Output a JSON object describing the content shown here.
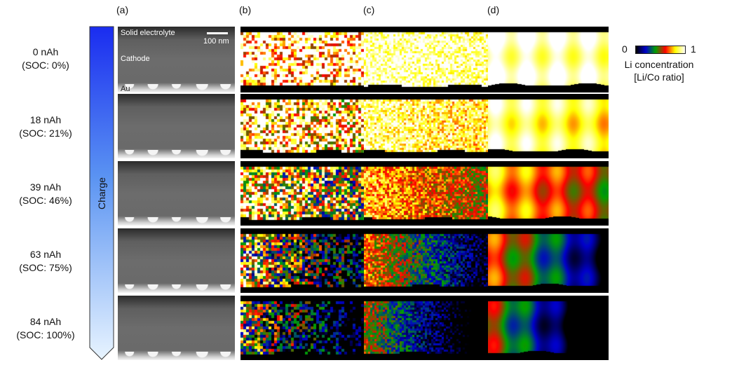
{
  "panels": {
    "a": "(a)",
    "b": "(b)",
    "c": "(c)",
    "d": "(d)"
  },
  "arrow": {
    "label": "Charge"
  },
  "rows": [
    {
      "charge": "0 nAh",
      "soc": "(SOC: 0%)",
      "level": 0.95
    },
    {
      "charge": "18 nAh",
      "soc": "(SOC: 21%)",
      "level": 0.86
    },
    {
      "charge": "39 nAh",
      "soc": "(SOC: 46%)",
      "level": 0.62
    },
    {
      "charge": "63 nAh",
      "soc": "(SOC: 75%)",
      "level": 0.42
    },
    {
      "charge": "84 nAh",
      "soc": "(SOC: 100%)",
      "level": 0.22
    }
  ],
  "em_labels": {
    "solid_electrolyte": "Solid electrolyte",
    "scale_bar": "100 nm",
    "cathode": "Cathode",
    "au": "Au"
  },
  "colorbar": {
    "min": "0",
    "max": "1",
    "title": "Li concentration",
    "subtitle": "[Li/Co ratio]",
    "colors": [
      "#000000",
      "#0000cc",
      "#00a000",
      "#ff0000",
      "#ffff00",
      "#ffffff"
    ]
  }
}
